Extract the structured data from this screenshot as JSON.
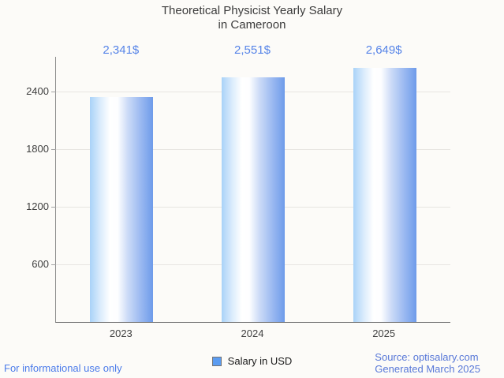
{
  "title": {
    "line1": "Theoretical Physicist Yearly Salary",
    "line2": "in Cameroon"
  },
  "chart_data": {
    "type": "bar",
    "title": "Theoretical Physicist Yearly Salary in Cameroon",
    "categories": [
      "2023",
      "2024",
      "2025"
    ],
    "values": [
      2341,
      2551,
      2649
    ],
    "value_labels": [
      "2,341$",
      "2,551$",
      "2,649$"
    ],
    "series": [
      {
        "name": "Salary in USD",
        "values": [
          2341,
          2551,
          2649
        ]
      }
    ],
    "xlabel": "",
    "ylabel": "",
    "y_ticks": [
      600,
      1200,
      1800,
      2400
    ],
    "ylim": [
      0,
      2760
    ],
    "grid": true,
    "legend_position": "bottom",
    "bar_color_left": "#a9d2f8",
    "bar_color_highlight": "#ffffff",
    "bar_color_right": "#6e9bea",
    "value_label_color": "#5684e8",
    "background_color": "#fcfbf8",
    "gridline_color": "#e7e5e1"
  },
  "legend": {
    "label": "Salary in USD",
    "swatch_color": "#5b9cf1"
  },
  "footer": {
    "left": "For informational use only",
    "source": "Source: optisalary.com",
    "generated": "Generated March 2025"
  }
}
